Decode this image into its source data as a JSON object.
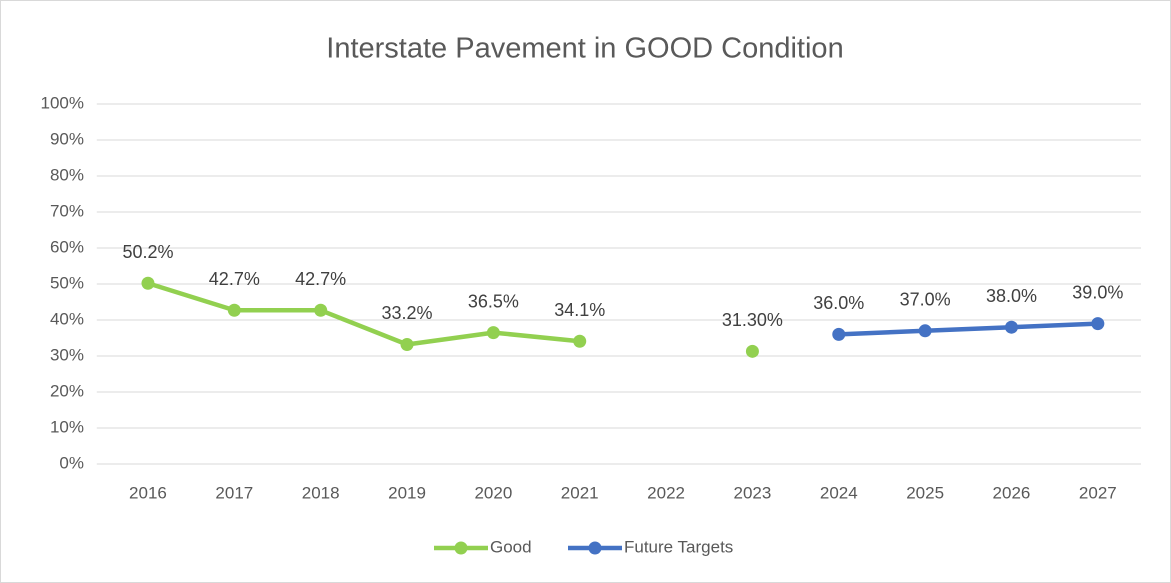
{
  "chart_data": {
    "type": "line",
    "title": "Interstate Pavement in GOOD Condition",
    "categories": [
      "2016",
      "2017",
      "2018",
      "2019",
      "2020",
      "2021",
      "2022",
      "2023",
      "2024",
      "2025",
      "2026",
      "2027"
    ],
    "series": [
      {
        "name": "Good",
        "color": "#92d050",
        "values": [
          50.2,
          42.7,
          42.7,
          33.2,
          36.5,
          34.1,
          null,
          31.3,
          null,
          null,
          null,
          null
        ],
        "value_labels": [
          "50.2%",
          "42.7%",
          "42.7%",
          "33.2%",
          "36.5%",
          "34.1%",
          null,
          "31.30%",
          null,
          null,
          null,
          null
        ]
      },
      {
        "name": "Future Targets",
        "color": "#4472c4",
        "values": [
          null,
          null,
          null,
          null,
          null,
          null,
          null,
          null,
          36.0,
          37.0,
          38.0,
          39.0
        ],
        "value_labels": [
          null,
          null,
          null,
          null,
          null,
          null,
          null,
          null,
          "36.0%",
          "37.0%",
          "38.0%",
          "39.0%"
        ]
      }
    ],
    "ylim": [
      0,
      100
    ],
    "yticks": [
      {
        "value": 0,
        "label": "0%"
      },
      {
        "value": 10,
        "label": "10%"
      },
      {
        "value": 20,
        "label": "20%"
      },
      {
        "value": 30,
        "label": "30%"
      },
      {
        "value": 40,
        "label": "40%"
      },
      {
        "value": 50,
        "label": "50%"
      },
      {
        "value": 60,
        "label": "60%"
      },
      {
        "value": 70,
        "label": "70%"
      },
      {
        "value": 80,
        "label": "80%"
      },
      {
        "value": 90,
        "label": "90%"
      },
      {
        "value": 100,
        "label": "100%"
      }
    ],
    "grid": true,
    "legend": "bottom"
  }
}
